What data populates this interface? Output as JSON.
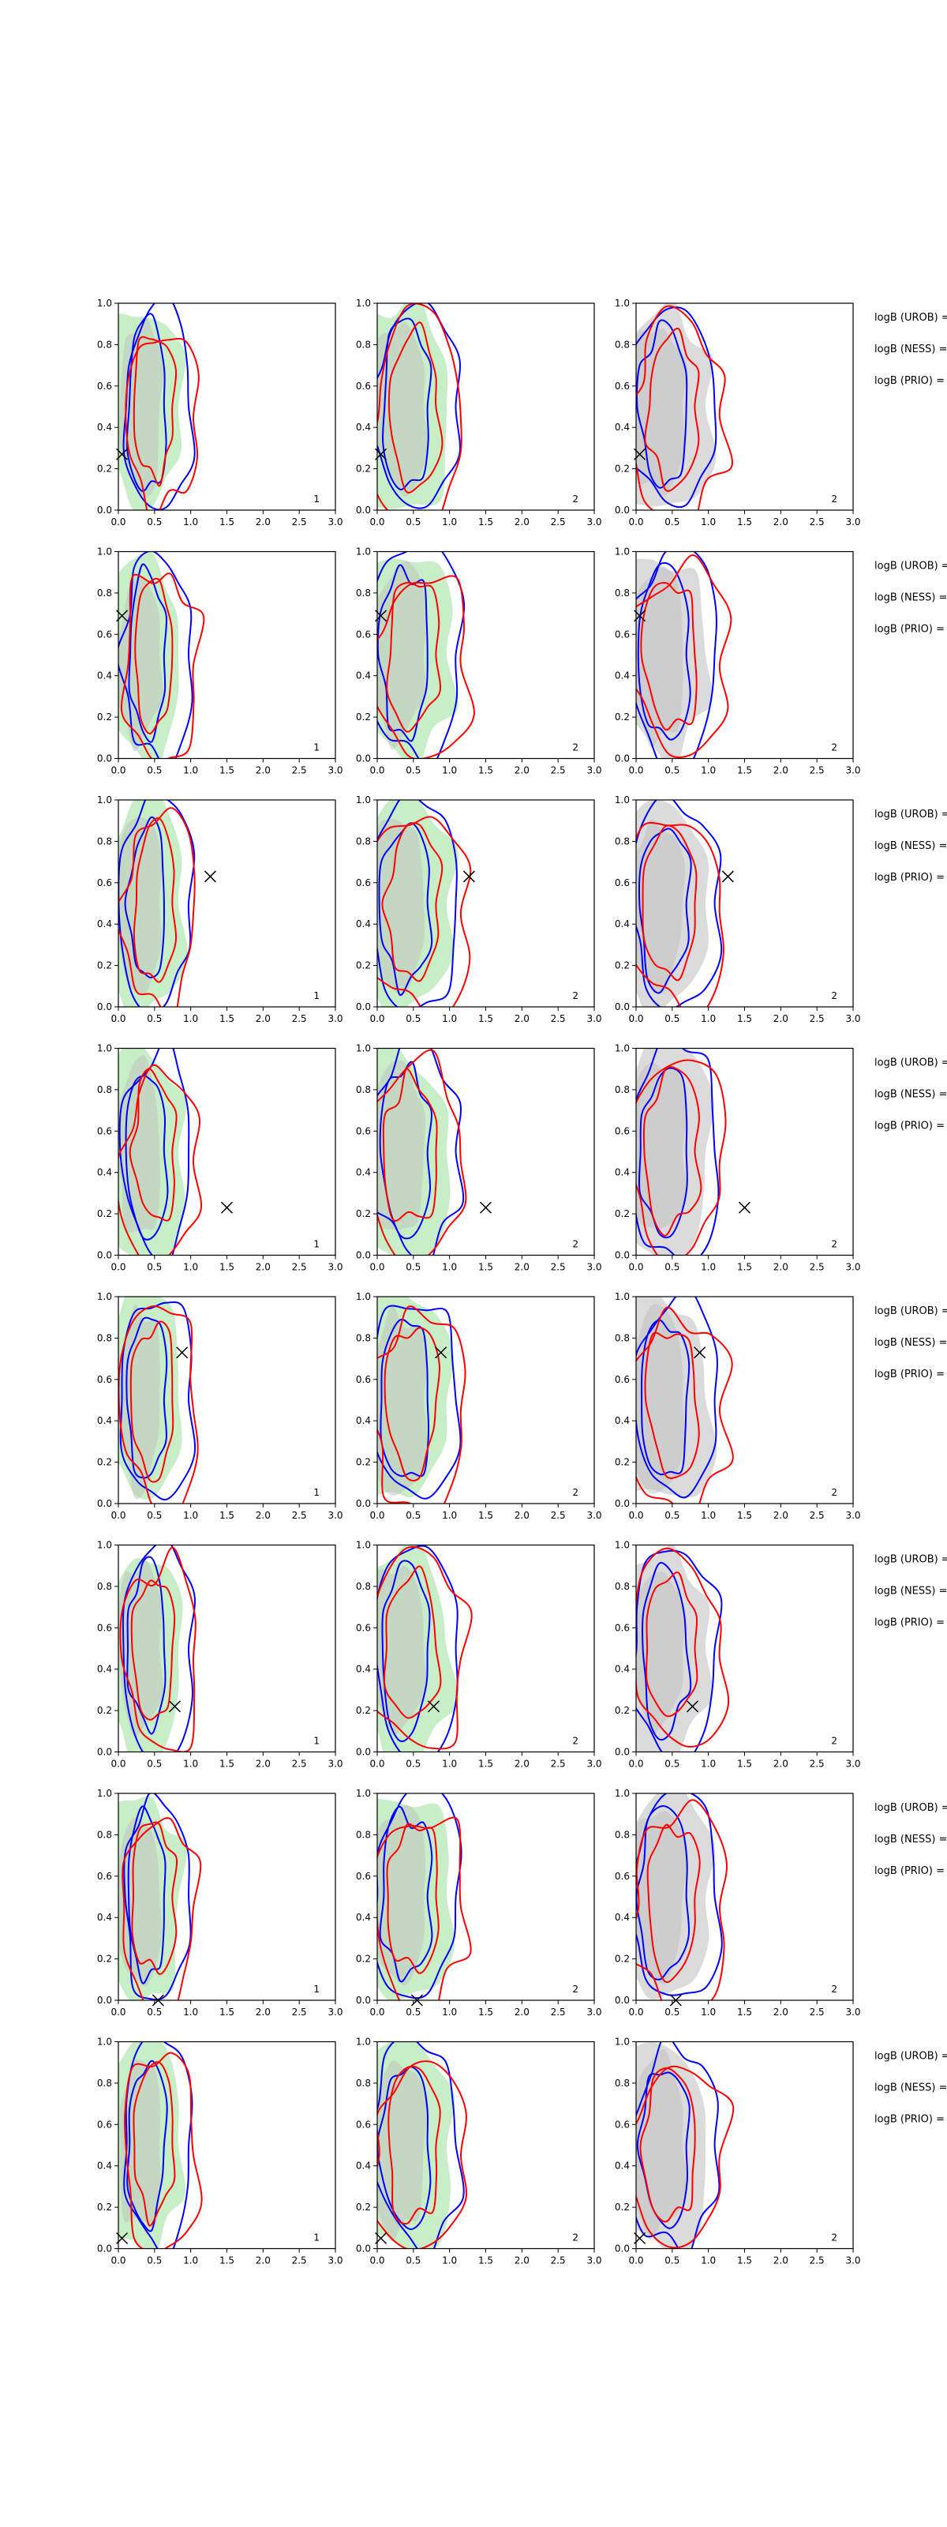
{
  "chart_data": {
    "type": "contour-grid",
    "rows": 8,
    "cols": 3,
    "xlim": [
      0.0,
      3.0
    ],
    "ylim": [
      0.0,
      1.0
    ],
    "x_ticks": [
      "0.0",
      "0.5",
      "1.0",
      "1.5",
      "2.0",
      "2.5",
      "3.0"
    ],
    "y_ticks": [
      "0.0",
      "0.2",
      "0.4",
      "0.6",
      "0.8",
      "1.0"
    ],
    "column_labels": [
      "1",
      "2",
      "2"
    ],
    "side_labels": [
      "logB (UROB) =",
      "logB (NESS) =",
      "logB (PRIO) ="
    ],
    "colors": {
      "blue": "#0000ff",
      "red": "#ff0000",
      "green_fill": "#b4e8b4",
      "gray_fill": "#cfcfcf",
      "marker": "#000000"
    },
    "markers": [
      {
        "x": 0.05,
        "y": 0.27
      },
      {
        "x": 0.05,
        "y": 0.69
      },
      {
        "x": 1.27,
        "y": 0.63
      },
      {
        "x": 1.5,
        "y": 0.23
      },
      {
        "x": 0.88,
        "y": 0.73
      },
      {
        "x": 0.78,
        "y": 0.22
      },
      {
        "x": 0.55,
        "y": 0.0
      },
      {
        "x": 0.05,
        "y": 0.05
      }
    ]
  }
}
